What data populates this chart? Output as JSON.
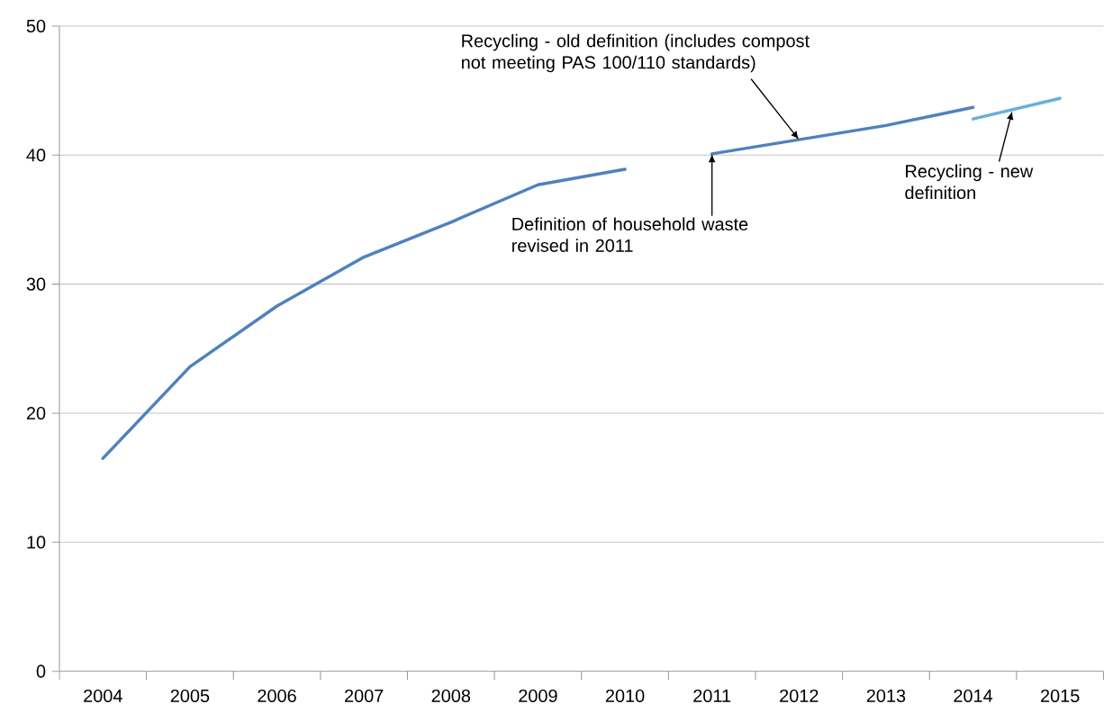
{
  "chart_data": {
    "type": "line",
    "categories": [
      "2004",
      "2005",
      "2006",
      "2007",
      "2008",
      "2009",
      "2010",
      "2011",
      "2012",
      "2013",
      "2014",
      "2015"
    ],
    "series": [
      {
        "color": "#4f81bd",
        "values": [
          16.5,
          23.6,
          28.3,
          32.1,
          34.8,
          37.7,
          38.9,
          null,
          null,
          null,
          null,
          null
        ]
      },
      {
        "color": "#4f81bd",
        "values": [
          null,
          null,
          null,
          null,
          null,
          null,
          null,
          40.1,
          41.2,
          42.3,
          43.7,
          null
        ]
      },
      {
        "color": "#6aaedc",
        "values": [
          null,
          null,
          null,
          null,
          null,
          null,
          null,
          null,
          null,
          null,
          42.8,
          44.4
        ]
      }
    ],
    "ylim": [
      0,
      50
    ],
    "yticks": [
      0,
      10,
      20,
      30,
      40,
      50
    ],
    "grid": "y",
    "annotations": [
      {
        "text": "Recycling - old definition (includes compost not meeting PAS 100/110 standards)",
        "x": "2012",
        "y": 41.2
      },
      {
        "text": "Definition of household waste revised in 2011",
        "x": "2011",
        "y": 40.1
      },
      {
        "text": "Recycling - new definition",
        "y": 43.4
      }
    ]
  }
}
